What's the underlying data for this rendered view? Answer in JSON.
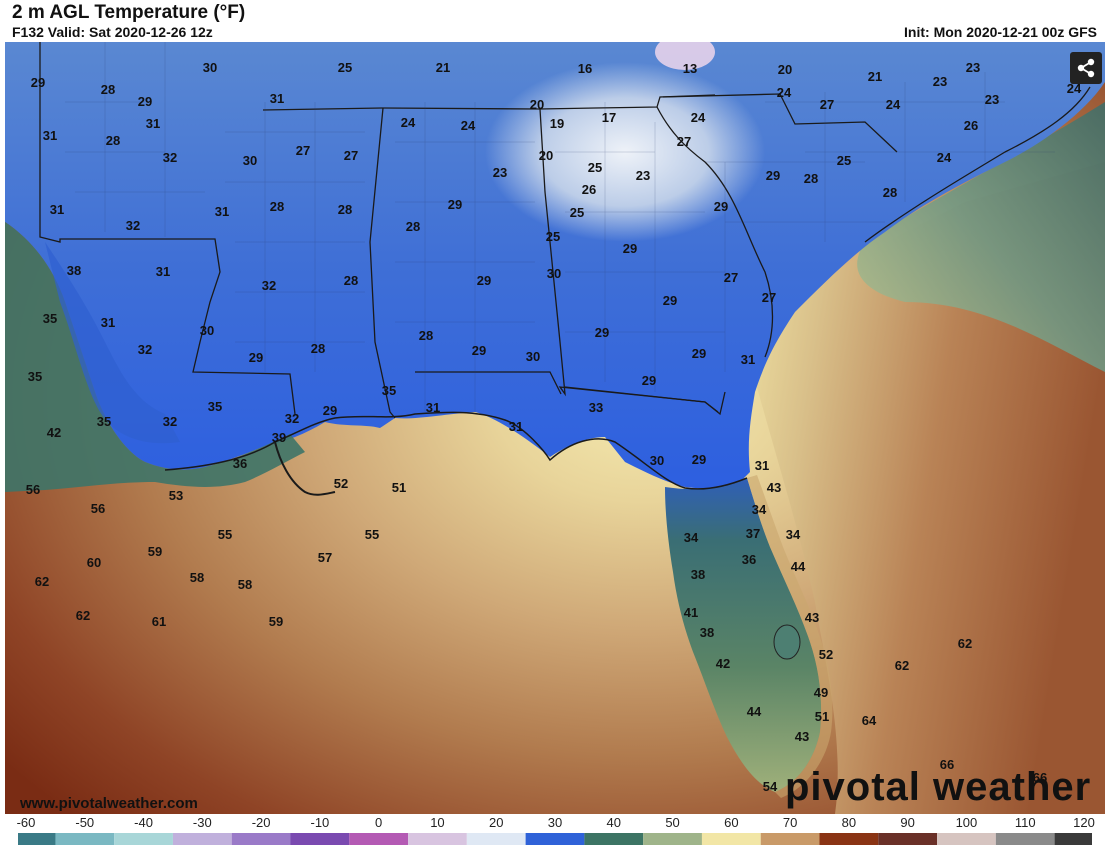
{
  "header": {
    "title": "2 m AGL Temperature (°F)",
    "valid": "F132 Valid: Sat 2020-12-26 12z",
    "init": "Init: Mon 2020-12-21 00z GFS"
  },
  "footer": {
    "website": "www.pivotalweather.com",
    "brand": "pivotal weather"
  },
  "icons": {
    "share": "share-icon"
  },
  "colors": {
    "cold": "#2f62d8",
    "land_cold": "#4f7ed0",
    "light": "#dde6f2",
    "coastal_green": "#3c7464",
    "warm_yellow": "#f2e6a6",
    "warm_orange": "#c99a68",
    "warm_red": "#8a3414"
  },
  "map_labels": [
    {
      "t": "29",
      "v": 29
    },
    {
      "t": "30",
      "v": 30
    },
    {
      "t": "25",
      "v": 25
    },
    {
      "t": "21",
      "v": 21
    },
    {
      "t": "16",
      "v": 16
    },
    {
      "t": "13",
      "v": 13
    },
    {
      "t": "20",
      "v": 20
    },
    {
      "t": "21",
      "v": 21
    },
    {
      "t": "23",
      "v": 23
    },
    {
      "t": "28",
      "v": 28
    },
    {
      "t": "29",
      "v": 29
    },
    {
      "t": "31",
      "v": 31
    },
    {
      "t": "24",
      "v": 24
    },
    {
      "t": "23",
      "v": 23
    },
    {
      "t": "23",
      "v": 23
    },
    {
      "t": "31",
      "v": 31
    },
    {
      "t": "31",
      "v": 31
    },
    {
      "t": "28",
      "v": 28
    },
    {
      "t": "24",
      "v": 24
    },
    {
      "t": "24",
      "v": 24
    },
    {
      "t": "20",
      "v": 20
    },
    {
      "t": "19",
      "v": 19
    },
    {
      "t": "17",
      "v": 17
    },
    {
      "t": "24",
      "v": 24
    },
    {
      "t": "24",
      "v": 24
    },
    {
      "t": "24",
      "v": 24
    },
    {
      "t": "32",
      "v": 32
    },
    {
      "t": "30",
      "v": 30
    },
    {
      "t": "27",
      "v": 27
    },
    {
      "t": "27",
      "v": 27
    },
    {
      "t": "20",
      "v": 20
    },
    {
      "t": "25",
      "v": 25
    },
    {
      "t": "23",
      "v": 23
    },
    {
      "t": "27",
      "v": 27
    },
    {
      "t": "27",
      "v": 27
    },
    {
      "t": "25",
      "v": 25
    },
    {
      "t": "24",
      "v": 24
    },
    {
      "t": "23",
      "v": 23
    },
    {
      "t": "26",
      "v": 26
    },
    {
      "t": "26",
      "v": 26
    },
    {
      "t": "31",
      "v": 31
    },
    {
      "t": "31",
      "v": 31
    },
    {
      "t": "28",
      "v": 28
    },
    {
      "t": "28",
      "v": 28
    },
    {
      "t": "29",
      "v": 29
    },
    {
      "t": "25",
      "v": 25
    },
    {
      "t": "29",
      "v": 29
    },
    {
      "t": "32",
      "v": 32
    },
    {
      "t": "28",
      "v": 28
    },
    {
      "t": "25",
      "v": 25
    },
    {
      "t": "29",
      "v": 29
    },
    {
      "t": "28",
      "v": 28
    },
    {
      "t": "38",
      "v": 38
    },
    {
      "t": "31",
      "v": 31
    },
    {
      "t": "29",
      "v": 29
    },
    {
      "t": "28",
      "v": 28
    },
    {
      "t": "29",
      "v": 29
    },
    {
      "t": "32",
      "v": 32
    },
    {
      "t": "28",
      "v": 28
    },
    {
      "t": "35",
      "v": 35
    },
    {
      "t": "31",
      "v": 31
    },
    {
      "t": "30",
      "v": 30
    },
    {
      "t": "30",
      "v": 30
    },
    {
      "t": "29",
      "v": 29
    },
    {
      "t": "27",
      "v": 27
    },
    {
      "t": "27",
      "v": 27
    },
    {
      "t": "32",
      "v": 32
    },
    {
      "t": "28",
      "v": 28
    },
    {
      "t": "28",
      "v": 28
    },
    {
      "t": "29",
      "v": 29
    },
    {
      "t": "30",
      "v": 30
    },
    {
      "t": "29",
      "v": 29
    },
    {
      "t": "35",
      "v": 35
    },
    {
      "t": "29",
      "v": 29
    },
    {
      "t": "31",
      "v": 31
    },
    {
      "t": "29",
      "v": 29
    },
    {
      "t": "35",
      "v": 35
    },
    {
      "t": "32",
      "v": 32
    },
    {
      "t": "32",
      "v": 32
    },
    {
      "t": "29",
      "v": 29
    },
    {
      "t": "29",
      "v": 29
    },
    {
      "t": "33",
      "v": 33
    },
    {
      "t": "42",
      "v": 42
    },
    {
      "t": "35",
      "v": 35
    },
    {
      "t": "35",
      "v": 35
    },
    {
      "t": "39",
      "v": 39
    },
    {
      "t": "31",
      "v": 31
    },
    {
      "t": "36",
      "v": 36
    },
    {
      "t": "30",
      "v": 30
    },
    {
      "t": "29",
      "v": 29
    },
    {
      "t": "31",
      "v": 31
    },
    {
      "t": "52",
      "v": 52
    },
    {
      "t": "51",
      "v": 51
    },
    {
      "t": "43",
      "v": 43
    },
    {
      "t": "56",
      "v": 56
    },
    {
      "t": "53",
      "v": 53
    },
    {
      "t": "31",
      "v": 31
    },
    {
      "t": "34",
      "v": 34
    },
    {
      "t": "56",
      "v": 56
    },
    {
      "t": "55",
      "v": 55
    },
    {
      "t": "55",
      "v": 55
    },
    {
      "t": "34",
      "v": 34
    },
    {
      "t": "37",
      "v": 37
    },
    {
      "t": "34",
      "v": 34
    },
    {
      "t": "59",
      "v": 59
    },
    {
      "t": "60",
      "v": 60
    },
    {
      "t": "57",
      "v": 57
    },
    {
      "t": "36",
      "v": 36
    },
    {
      "t": "44",
      "v": 44
    },
    {
      "t": "62",
      "v": 62
    },
    {
      "t": "58",
      "v": 58
    },
    {
      "t": "58",
      "v": 58
    },
    {
      "t": "38",
      "v": 38
    },
    {
      "t": "62",
      "v": 62
    },
    {
      "t": "61",
      "v": 61
    },
    {
      "t": "59",
      "v": 59
    },
    {
      "t": "41",
      "v": 41
    },
    {
      "t": "43",
      "v": 43
    },
    {
      "t": "38",
      "v": 38
    },
    {
      "t": "52",
      "v": 52
    },
    {
      "t": "62",
      "v": 62
    },
    {
      "t": "62",
      "v": 62
    },
    {
      "t": "42",
      "v": 42
    },
    {
      "t": "49",
      "v": 49
    },
    {
      "t": "44",
      "v": 44
    },
    {
      "t": "51",
      "v": 51
    },
    {
      "t": "64",
      "v": 64
    },
    {
      "t": "43",
      "v": 43
    },
    {
      "t": "66",
      "v": 66
    },
    {
      "t": "66",
      "v": 66
    },
    {
      "t": "54",
      "v": 54
    }
  ],
  "color_scale": {
    "ticks": [
      "-60",
      "-50",
      "-40",
      "-30",
      "-20",
      "-10",
      "0",
      "10",
      "20",
      "30",
      "40",
      "50",
      "60",
      "70",
      "80",
      "90",
      "100",
      "110",
      "120"
    ],
    "colors": [
      "#3a7a86",
      "#7ab8c2",
      "#a8d6d8",
      "#c0b0dc",
      "#9a7ac8",
      "#7a4ab0",
      "#b45ab4",
      "#d8c4e0",
      "#dfe8f4",
      "#2f62d8",
      "#3c7464",
      "#9fb48a",
      "#f2e6a6",
      "#c99a68",
      "#8a3414",
      "#6a3028",
      "#d6c4c0",
      "#8a8a8a",
      "#3a3a3a"
    ]
  }
}
